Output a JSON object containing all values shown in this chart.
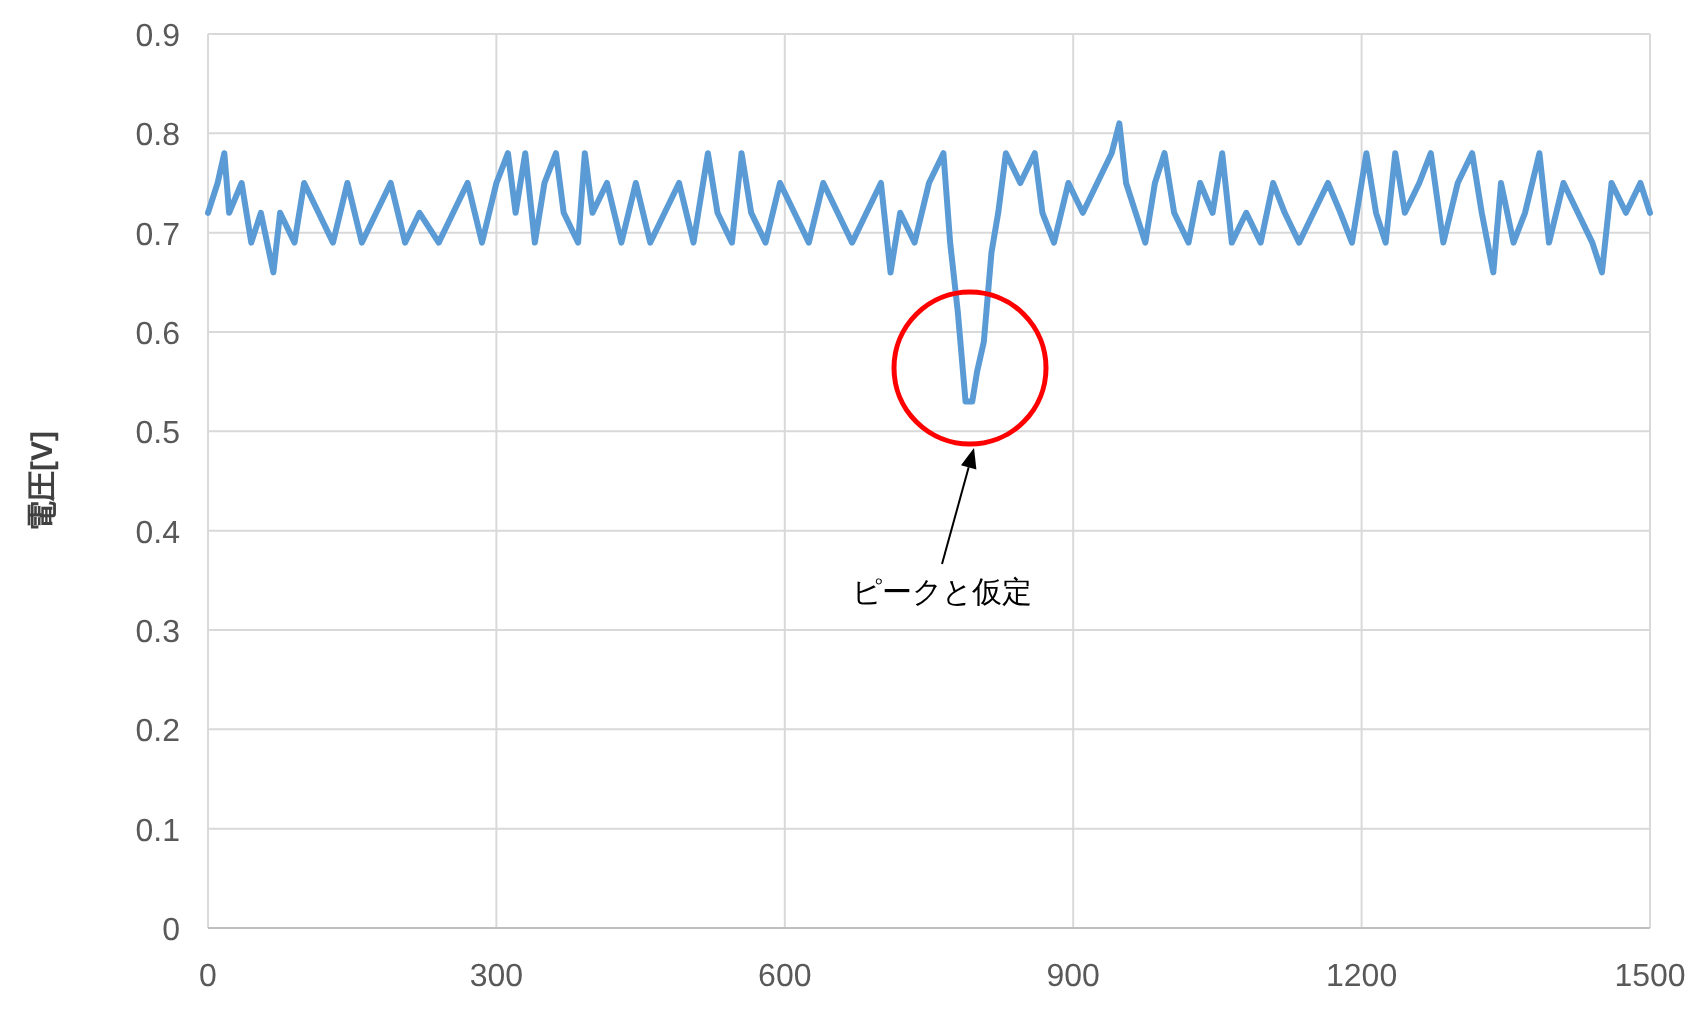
{
  "chart_data": {
    "type": "line",
    "ylabel": "電圧[V]",
    "x": [
      0,
      10,
      17,
      22,
      35,
      45,
      55,
      68,
      75,
      90,
      100,
      115,
      130,
      145,
      160,
      175,
      190,
      205,
      220,
      240,
      255,
      270,
      285,
      300,
      312,
      320,
      330,
      340,
      350,
      362,
      370,
      385,
      392,
      400,
      415,
      430,
      445,
      460,
      475,
      490,
      505,
      520,
      530,
      545,
      555,
      565,
      580,
      595,
      610,
      625,
      640,
      655,
      670,
      685,
      700,
      710,
      720,
      735,
      750,
      765,
      772,
      780,
      788,
      795,
      800,
      807,
      815,
      822,
      830,
      845,
      860,
      868,
      880,
      895,
      910,
      925,
      940,
      948,
      955,
      965,
      975,
      985,
      995,
      1005,
      1020,
      1032,
      1045,
      1055,
      1065,
      1080,
      1095,
      1108,
      1120,
      1135,
      1150,
      1165,
      1178,
      1190,
      1205,
      1215,
      1225,
      1235,
      1245,
      1260,
      1272,
      1285,
      1300,
      1315,
      1325,
      1337,
      1345,
      1358,
      1370,
      1385,
      1395,
      1410,
      1425,
      1440,
      1450,
      1460,
      1475,
      1490,
      1500
    ],
    "series": [
      {
        "color": "#5b9bd5",
        "values": [
          0.72,
          0.75,
          0.78,
          0.72,
          0.75,
          0.69,
          0.72,
          0.66,
          0.72,
          0.69,
          0.75,
          0.72,
          0.69,
          0.75,
          0.69,
          0.72,
          0.75,
          0.69,
          0.72,
          0.69,
          0.72,
          0.75,
          0.69,
          0.75,
          0.78,
          0.72,
          0.78,
          0.69,
          0.75,
          0.78,
          0.72,
          0.69,
          0.78,
          0.72,
          0.75,
          0.69,
          0.75,
          0.69,
          0.72,
          0.75,
          0.69,
          0.78,
          0.72,
          0.69,
          0.78,
          0.72,
          0.69,
          0.75,
          0.72,
          0.69,
          0.75,
          0.72,
          0.69,
          0.72,
          0.75,
          0.66,
          0.72,
          0.69,
          0.75,
          0.78,
          0.69,
          0.62,
          0.53,
          0.53,
          0.56,
          0.59,
          0.68,
          0.72,
          0.78,
          0.75,
          0.78,
          0.72,
          0.69,
          0.75,
          0.72,
          0.75,
          0.78,
          0.81,
          0.75,
          0.72,
          0.69,
          0.75,
          0.78,
          0.72,
          0.69,
          0.75,
          0.72,
          0.78,
          0.69,
          0.72,
          0.69,
          0.75,
          0.72,
          0.69,
          0.72,
          0.75,
          0.72,
          0.69,
          0.78,
          0.72,
          0.69,
          0.78,
          0.72,
          0.75,
          0.78,
          0.69,
          0.75,
          0.78,
          0.72,
          0.66,
          0.75,
          0.69,
          0.72,
          0.78,
          0.69,
          0.75,
          0.72,
          0.69,
          0.66,
          0.75,
          0.72,
          0.75,
          0.72
        ]
      }
    ],
    "xlim": [
      0,
      1500
    ],
    "ylim": [
      0,
      0.9
    ],
    "xticks": [
      0,
      300,
      600,
      900,
      1200,
      1500
    ],
    "yticks": [
      0,
      0.1,
      0.2,
      0.3,
      0.4,
      0.5,
      0.6,
      0.7,
      0.8,
      0.9
    ],
    "grid": true,
    "annotations": [
      "ピークと仮定"
    ]
  }
}
